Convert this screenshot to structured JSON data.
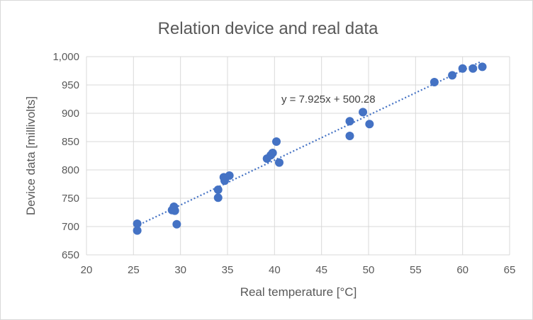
{
  "chart_data": {
    "type": "scatter",
    "title": "Relation device and real data",
    "xlabel": "Real temperature [°C]",
    "ylabel": "Device data [millivolts]",
    "xlim": [
      20,
      65
    ],
    "ylim": [
      650,
      1000
    ],
    "x_ticks": [
      "20",
      "25",
      "30",
      "35",
      "40",
      "45",
      "50",
      "55",
      "60",
      "65"
    ],
    "y_ticks": [
      "650",
      "700",
      "750",
      "800",
      "850",
      "900",
      "950",
      "1,000"
    ],
    "x_tick_values": [
      20,
      25,
      30,
      35,
      40,
      45,
      50,
      55,
      60,
      65
    ],
    "y_tick_values": [
      650,
      700,
      750,
      800,
      850,
      900,
      950,
      1000
    ],
    "grid": true,
    "marker_color": "#4472c4",
    "trendline": {
      "type": "linear",
      "slope": 7.925,
      "intercept": 500.28,
      "x_range": [
        25.3,
        62.0
      ],
      "equation_label": "y = 7.925x + 500.28",
      "style": "dotted"
    },
    "series": [
      {
        "points": [
          [
            25.4,
            705
          ],
          [
            25.4,
            693
          ],
          [
            29.1,
            729
          ],
          [
            29.3,
            735
          ],
          [
            29.4,
            728
          ],
          [
            29.6,
            704
          ],
          [
            34.0,
            765
          ],
          [
            34.0,
            751
          ],
          [
            34.6,
            787
          ],
          [
            34.7,
            781
          ],
          [
            35.2,
            790
          ],
          [
            39.2,
            820
          ],
          [
            39.6,
            826
          ],
          [
            39.8,
            830
          ],
          [
            40.2,
            850
          ],
          [
            40.5,
            813
          ],
          [
            48.0,
            886
          ],
          [
            48.0,
            860
          ],
          [
            49.4,
            902
          ],
          [
            50.1,
            881
          ],
          [
            57.0,
            955
          ],
          [
            58.9,
            967
          ],
          [
            60.0,
            979
          ],
          [
            61.1,
            979
          ],
          [
            62.1,
            982
          ]
        ]
      }
    ]
  }
}
